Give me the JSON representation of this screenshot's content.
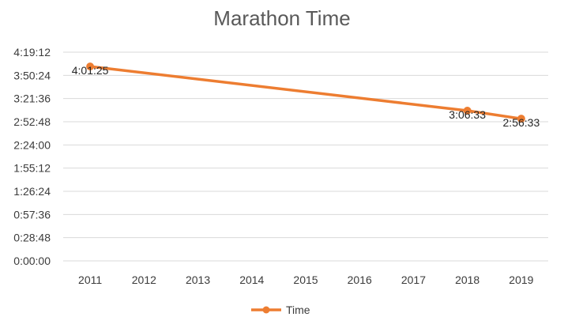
{
  "chart_data": {
    "type": "line",
    "title": "Marathon Time",
    "xlabel": "",
    "ylabel": "",
    "categories": [
      "2011",
      "2012",
      "2013",
      "2014",
      "2015",
      "2016",
      "2017",
      "2018",
      "2019"
    ],
    "y_unit": "seconds",
    "ylim": [
      0,
      15552
    ],
    "y_ticks": [
      0,
      1728,
      3456,
      5184,
      6912,
      8640,
      10368,
      12096,
      13824,
      15552
    ],
    "y_tick_labels": [
      "0:00:00",
      "0:28:48",
      "0:57:36",
      "1:26:24",
      "1:55:12",
      "2:24:00",
      "2:52:48",
      "3:21:36",
      "3:50:24",
      "4:19:12"
    ],
    "grid": true,
    "legend_position": "bottom",
    "series": [
      {
        "name": "Time",
        "color": "#ED7D31",
        "x": [
          "2011",
          "2018",
          "2019"
        ],
        "values": [
          14485,
          11193,
          10593
        ],
        "data_labels": [
          "4:01:25",
          "3:06:33",
          "2:56:33"
        ]
      }
    ]
  }
}
